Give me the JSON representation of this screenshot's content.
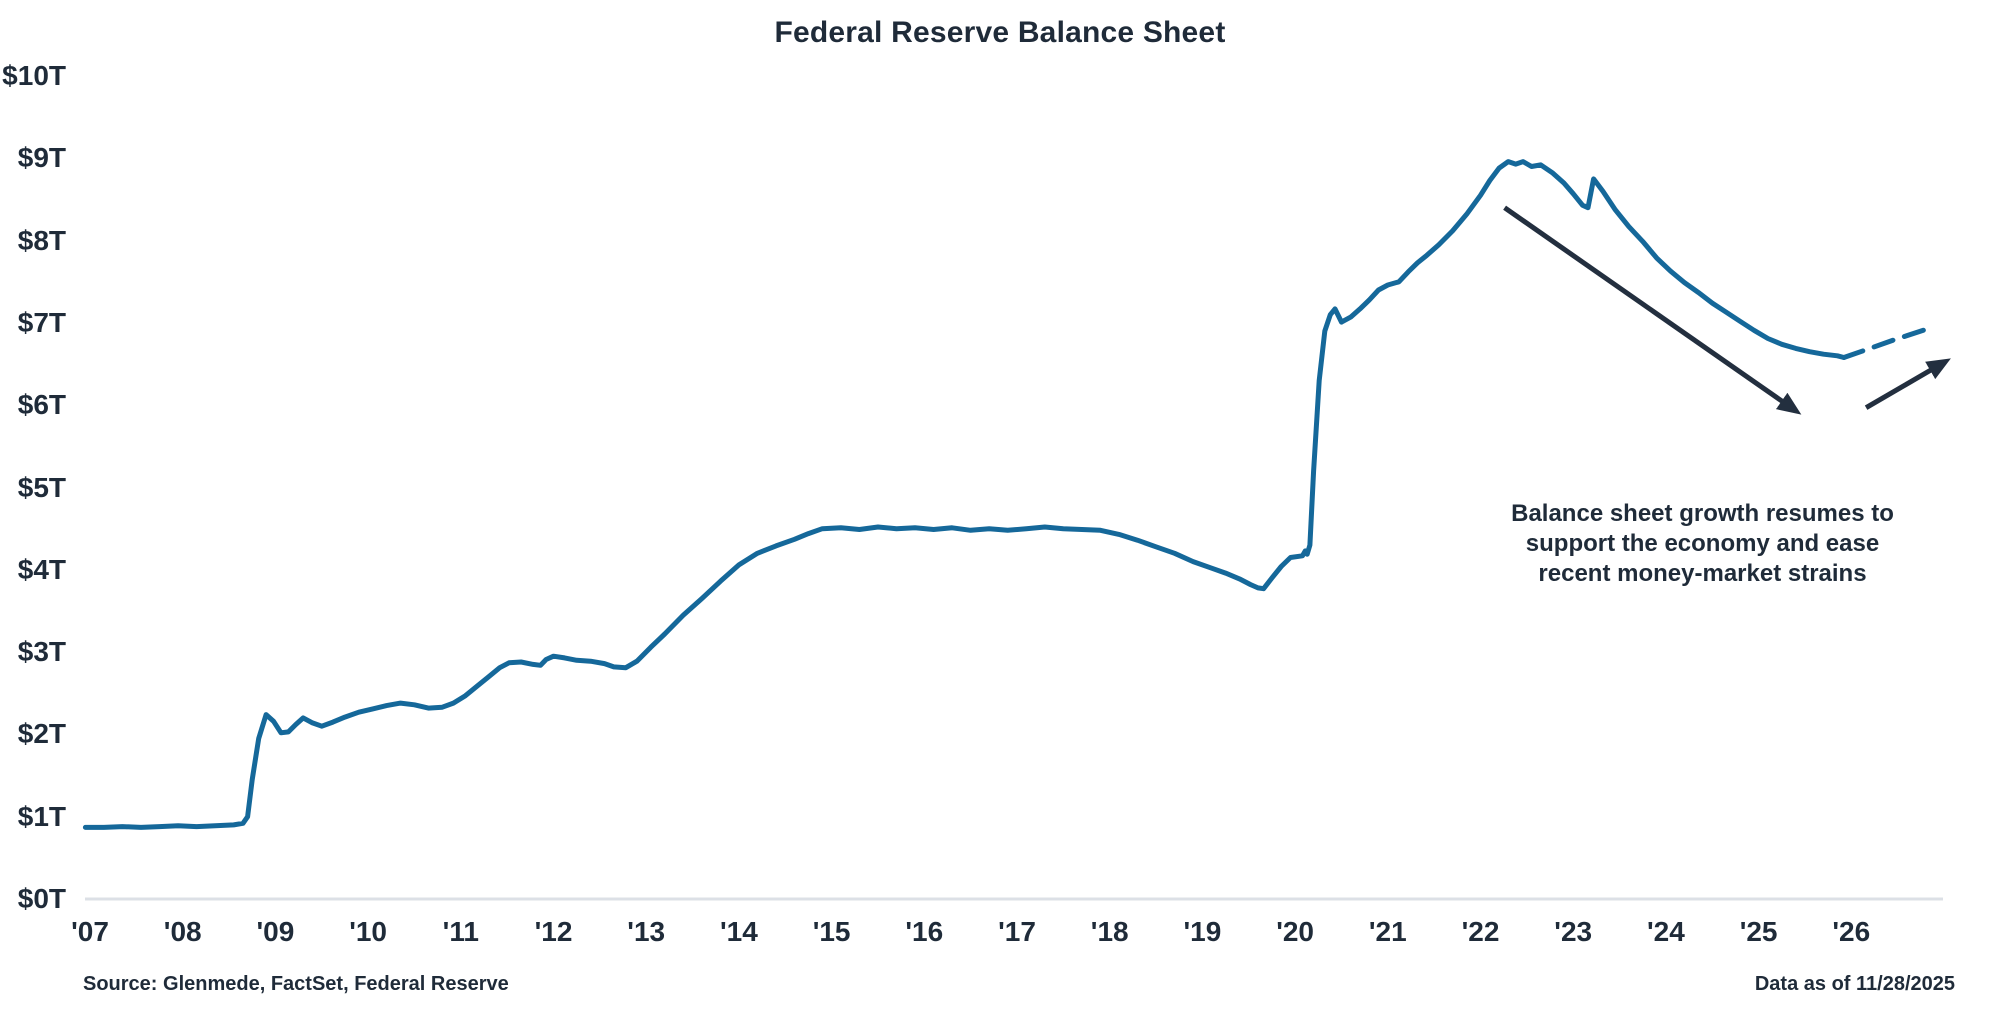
{
  "title": "Federal Reserve Balance Sheet",
  "source": "Source: Glenmede, FactSet, Federal Reserve",
  "data_as_of": "Data as of 11/28/2025",
  "annotation": {
    "lines": [
      "Balance sheet growth resumes to",
      "support the economy and ease",
      "recent money-market strains"
    ]
  },
  "colors": {
    "line": "#15689a",
    "text": "#1f2b39",
    "arrow": "#232f3f",
    "axis": "#dce0e6"
  },
  "chart_data": {
    "type": "line",
    "title": "Federal Reserve Balance Sheet",
    "xlabel": "",
    "ylabel": "",
    "xlim": [
      2006.9,
      2027.05
    ],
    "ylim": [
      0,
      10
    ],
    "grid": false,
    "legend": "none",
    "y_ticks": [
      {
        "value": 0,
        "label": "$0T"
      },
      {
        "value": 1,
        "label": "$1T"
      },
      {
        "value": 2,
        "label": "$2T"
      },
      {
        "value": 3,
        "label": "$3T"
      },
      {
        "value": 4,
        "label": "$4T"
      },
      {
        "value": 5,
        "label": "$5T"
      },
      {
        "value": 6,
        "label": "$6T"
      },
      {
        "value": 7,
        "label": "$7T"
      },
      {
        "value": 8,
        "label": "$8T"
      },
      {
        "value": 9,
        "label": "$9T"
      },
      {
        "value": 10,
        "label": "$10T"
      }
    ],
    "x_ticks": [
      {
        "year": 2007,
        "label": "'07"
      },
      {
        "year": 2008,
        "label": "'08"
      },
      {
        "year": 2009,
        "label": "'09"
      },
      {
        "year": 2010,
        "label": "'10"
      },
      {
        "year": 2011,
        "label": "'11"
      },
      {
        "year": 2012,
        "label": "'12"
      },
      {
        "year": 2013,
        "label": "'13"
      },
      {
        "year": 2014,
        "label": "'14"
      },
      {
        "year": 2015,
        "label": "'15"
      },
      {
        "year": 2016,
        "label": "'16"
      },
      {
        "year": 2017,
        "label": "'17"
      },
      {
        "year": 2018,
        "label": "'18"
      },
      {
        "year": 2019,
        "label": "'19"
      },
      {
        "year": 2020,
        "label": "'20"
      },
      {
        "year": 2021,
        "label": "'21"
      },
      {
        "year": 2022,
        "label": "'22"
      },
      {
        "year": 2023,
        "label": "'23"
      },
      {
        "year": 2024,
        "label": "'24"
      },
      {
        "year": 2025,
        "label": "'25"
      },
      {
        "year": 2026,
        "label": "'26"
      }
    ],
    "series": [
      {
        "name": "actual",
        "style": "solid",
        "points": [
          [
            2006.95,
            0.87
          ],
          [
            2007.15,
            0.87
          ],
          [
            2007.35,
            0.88
          ],
          [
            2007.55,
            0.87
          ],
          [
            2007.75,
            0.88
          ],
          [
            2007.95,
            0.89
          ],
          [
            2008.15,
            0.88
          ],
          [
            2008.35,
            0.89
          ],
          [
            2008.55,
            0.9
          ],
          [
            2008.65,
            0.92
          ],
          [
            2008.7,
            1.0
          ],
          [
            2008.75,
            1.45
          ],
          [
            2008.82,
            1.95
          ],
          [
            2008.9,
            2.24
          ],
          [
            2008.98,
            2.16
          ],
          [
            2009.06,
            2.02
          ],
          [
            2009.14,
            2.03
          ],
          [
            2009.22,
            2.12
          ],
          [
            2009.3,
            2.2
          ],
          [
            2009.4,
            2.14
          ],
          [
            2009.5,
            2.1
          ],
          [
            2009.62,
            2.15
          ],
          [
            2009.75,
            2.21
          ],
          [
            2009.9,
            2.27
          ],
          [
            2010.05,
            2.31
          ],
          [
            2010.2,
            2.35
          ],
          [
            2010.35,
            2.38
          ],
          [
            2010.5,
            2.36
          ],
          [
            2010.65,
            2.32
          ],
          [
            2010.8,
            2.33
          ],
          [
            2010.92,
            2.38
          ],
          [
            2011.05,
            2.47
          ],
          [
            2011.18,
            2.59
          ],
          [
            2011.3,
            2.7
          ],
          [
            2011.42,
            2.81
          ],
          [
            2011.52,
            2.87
          ],
          [
            2011.65,
            2.88
          ],
          [
            2011.78,
            2.85
          ],
          [
            2011.86,
            2.84
          ],
          [
            2011.92,
            2.91
          ],
          [
            2012.0,
            2.95
          ],
          [
            2012.12,
            2.93
          ],
          [
            2012.25,
            2.9
          ],
          [
            2012.4,
            2.89
          ],
          [
            2012.55,
            2.86
          ],
          [
            2012.65,
            2.82
          ],
          [
            2012.78,
            2.81
          ],
          [
            2012.9,
            2.89
          ],
          [
            2013.05,
            3.06
          ],
          [
            2013.2,
            3.22
          ],
          [
            2013.4,
            3.45
          ],
          [
            2013.6,
            3.65
          ],
          [
            2013.8,
            3.86
          ],
          [
            2014.0,
            4.06
          ],
          [
            2014.2,
            4.2
          ],
          [
            2014.4,
            4.29
          ],
          [
            2014.6,
            4.37
          ],
          [
            2014.75,
            4.44
          ],
          [
            2014.9,
            4.5
          ],
          [
            2015.1,
            4.51
          ],
          [
            2015.3,
            4.49
          ],
          [
            2015.5,
            4.52
          ],
          [
            2015.7,
            4.5
          ],
          [
            2015.9,
            4.51
          ],
          [
            2016.1,
            4.49
          ],
          [
            2016.3,
            4.51
          ],
          [
            2016.5,
            4.48
          ],
          [
            2016.7,
            4.5
          ],
          [
            2016.9,
            4.48
          ],
          [
            2017.1,
            4.5
          ],
          [
            2017.3,
            4.52
          ],
          [
            2017.5,
            4.5
          ],
          [
            2017.7,
            4.49
          ],
          [
            2017.9,
            4.48
          ],
          [
            2018.1,
            4.43
          ],
          [
            2018.3,
            4.36
          ],
          [
            2018.5,
            4.28
          ],
          [
            2018.7,
            4.2
          ],
          [
            2018.9,
            4.1
          ],
          [
            2019.1,
            4.02
          ],
          [
            2019.25,
            3.96
          ],
          [
            2019.4,
            3.89
          ],
          [
            2019.52,
            3.82
          ],
          [
            2019.6,
            3.78
          ],
          [
            2019.66,
            3.77
          ],
          [
            2019.75,
            3.9
          ],
          [
            2019.85,
            4.04
          ],
          [
            2019.95,
            4.15
          ],
          [
            2020.08,
            4.17
          ],
          [
            2020.11,
            4.23
          ],
          [
            2020.13,
            4.19
          ],
          [
            2020.16,
            4.3
          ],
          [
            2020.2,
            5.2
          ],
          [
            2020.26,
            6.3
          ],
          [
            2020.32,
            6.9
          ],
          [
            2020.38,
            7.1
          ],
          [
            2020.43,
            7.17
          ],
          [
            2020.5,
            7.01
          ],
          [
            2020.6,
            7.07
          ],
          [
            2020.7,
            7.17
          ],
          [
            2020.8,
            7.28
          ],
          [
            2020.9,
            7.4
          ],
          [
            2021.0,
            7.46
          ],
          [
            2021.12,
            7.5
          ],
          [
            2021.22,
            7.62
          ],
          [
            2021.32,
            7.73
          ],
          [
            2021.42,
            7.82
          ],
          [
            2021.55,
            7.95
          ],
          [
            2021.7,
            8.12
          ],
          [
            2021.85,
            8.32
          ],
          [
            2022.0,
            8.55
          ],
          [
            2022.1,
            8.73
          ],
          [
            2022.2,
            8.88
          ],
          [
            2022.3,
            8.96
          ],
          [
            2022.38,
            8.93
          ],
          [
            2022.46,
            8.96
          ],
          [
            2022.55,
            8.9
          ],
          [
            2022.65,
            8.92
          ],
          [
            2022.78,
            8.82
          ],
          [
            2022.9,
            8.7
          ],
          [
            2023.0,
            8.57
          ],
          [
            2023.1,
            8.43
          ],
          [
            2023.16,
            8.4
          ],
          [
            2023.22,
            8.75
          ],
          [
            2023.32,
            8.6
          ],
          [
            2023.45,
            8.38
          ],
          [
            2023.6,
            8.17
          ],
          [
            2023.75,
            7.99
          ],
          [
            2023.9,
            7.79
          ],
          [
            2024.05,
            7.63
          ],
          [
            2024.2,
            7.49
          ],
          [
            2024.35,
            7.37
          ],
          [
            2024.5,
            7.24
          ],
          [
            2024.65,
            7.13
          ],
          [
            2024.8,
            7.02
          ],
          [
            2024.95,
            6.91
          ],
          [
            2025.1,
            6.81
          ],
          [
            2025.25,
            6.74
          ],
          [
            2025.4,
            6.69
          ],
          [
            2025.55,
            6.65
          ],
          [
            2025.7,
            6.62
          ],
          [
            2025.85,
            6.6
          ],
          [
            2025.92,
            6.58
          ]
        ]
      },
      {
        "name": "projected",
        "style": "dashed",
        "points": [
          [
            2025.92,
            6.58
          ],
          [
            2026.15,
            6.67
          ],
          [
            2026.45,
            6.79
          ],
          [
            2026.83,
            6.93
          ]
        ]
      }
    ],
    "arrows": [
      {
        "name": "qt-decline-arrow",
        "from": [
          2022.26,
          8.4
        ],
        "to": [
          2025.39,
          5.94
        ]
      },
      {
        "name": "growth-resumes-arrow",
        "from": [
          2026.16,
          5.97
        ],
        "to": [
          2027.0,
          6.52
        ]
      }
    ]
  }
}
